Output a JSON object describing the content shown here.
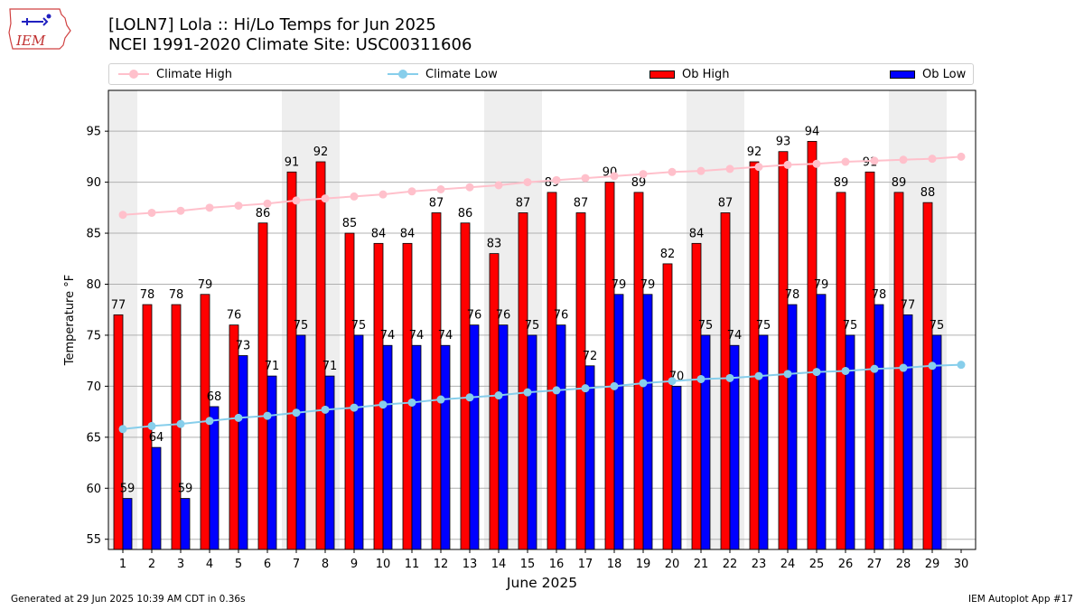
{
  "header": {
    "title_line1": "[LOLN7] Lola :: Hi/Lo Temps for Jun 2025",
    "title_line2": "NCEI 1991-2020 Climate Site: USC00311606",
    "logo_text": "IEM"
  },
  "legend": {
    "climate_high": "Climate High",
    "climate_low": "Climate Low",
    "ob_high": "Ob High",
    "ob_low": "Ob Low"
  },
  "footer": {
    "generated": "Generated at 29 Jun 2025 10:39 AM CDT in 0.36s",
    "app": "IEM Autoplot App #17"
  },
  "colors": {
    "ob_high": "#ff0000",
    "ob_low": "#0000ff",
    "climate_high": "#ffc0cb",
    "climate_low": "#87ceeb",
    "weekend_band": "#eeeeee",
    "grid": "#b0b0b0"
  },
  "chart_data": {
    "type": "bar",
    "title": "[LOLN7] Lola :: Hi/Lo Temps for Jun 2025",
    "subtitle": "NCEI 1991-2020 Climate Site: USC00311606",
    "xlabel": "June 2025",
    "ylabel": "Temperature °F",
    "ylim": [
      54,
      99
    ],
    "yticks": [
      55,
      60,
      65,
      70,
      75,
      80,
      85,
      90,
      95
    ],
    "grid": true,
    "legend_position": "top",
    "categories": [
      "1",
      "2",
      "3",
      "4",
      "5",
      "6",
      "7",
      "8",
      "9",
      "10",
      "11",
      "12",
      "13",
      "14",
      "15",
      "16",
      "17",
      "18",
      "19",
      "20",
      "21",
      "22",
      "23",
      "24",
      "25",
      "26",
      "27",
      "28",
      "29",
      "30"
    ],
    "weekend_bands": [
      [
        1,
        1
      ],
      [
        7,
        8
      ],
      [
        14,
        15
      ],
      [
        21,
        22
      ],
      [
        28,
        29
      ]
    ],
    "series": [
      {
        "name": "Ob High",
        "kind": "bar",
        "values": [
          77,
          78,
          78,
          79,
          76,
          86,
          91,
          92,
          85,
          84,
          84,
          87,
          86,
          83,
          87,
          89,
          87,
          90,
          89,
          82,
          84,
          87,
          92,
          93,
          94,
          89,
          91,
          89,
          88,
          null
        ]
      },
      {
        "name": "Ob Low",
        "kind": "bar",
        "values": [
          59,
          64,
          59,
          68,
          73,
          71,
          75,
          71,
          75,
          74,
          74,
          74,
          76,
          76,
          75,
          76,
          72,
          79,
          79,
          70,
          75,
          74,
          75,
          78,
          79,
          75,
          78,
          77,
          75,
          null
        ]
      },
      {
        "name": "Climate High",
        "kind": "line",
        "values": [
          86.8,
          87.0,
          87.2,
          87.5,
          87.7,
          87.9,
          88.2,
          88.4,
          88.6,
          88.8,
          89.1,
          89.3,
          89.5,
          89.7,
          90.0,
          90.2,
          90.4,
          90.6,
          90.8,
          91.0,
          91.1,
          91.3,
          91.5,
          91.7,
          91.8,
          92.0,
          92.1,
          92.2,
          92.3,
          92.5
        ]
      },
      {
        "name": "Climate Low",
        "kind": "line",
        "values": [
          65.8,
          66.1,
          66.3,
          66.6,
          66.9,
          67.1,
          67.4,
          67.7,
          67.9,
          68.2,
          68.4,
          68.7,
          68.9,
          69.1,
          69.4,
          69.6,
          69.8,
          70.0,
          70.3,
          70.5,
          70.7,
          70.8,
          71.0,
          71.2,
          71.4,
          71.5,
          71.7,
          71.8,
          72.0,
          72.1
        ]
      }
    ]
  }
}
